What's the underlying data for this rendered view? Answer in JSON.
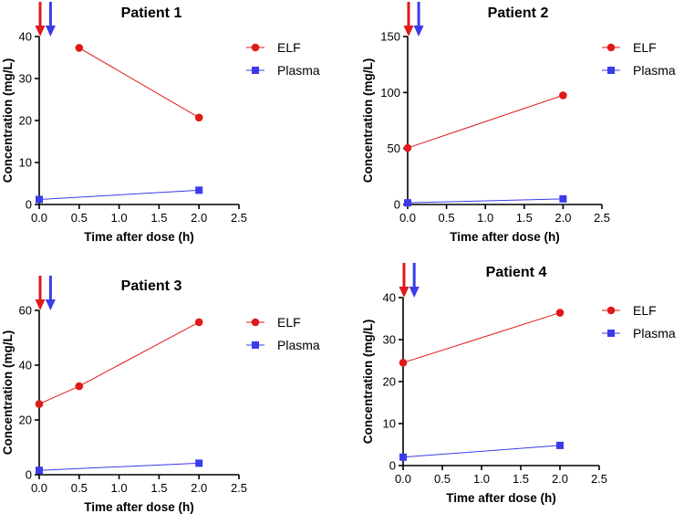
{
  "colors": {
    "elf": "#e01919",
    "plasma": "#3b3bea",
    "dose_arrow_1": "#e01919",
    "dose_arrow_2": "#3b3bea"
  },
  "chart_data": [
    {
      "type": "line",
      "title": "Patient 1",
      "xlabel": "Time after dose (h)",
      "ylabel": "Concentration (mg/L)",
      "xlim": [
        0,
        2.5
      ],
      "ylim": [
        0,
        40
      ],
      "xticks": [
        0,
        0.5,
        1.0,
        1.5,
        2.0,
        2.5
      ],
      "xtick_labels": [
        "0.0",
        "0.5",
        "1.0",
        "1.5",
        "2.0",
        "2.5"
      ],
      "yticks": [
        0,
        10,
        20,
        30,
        40
      ],
      "ytick_labels": [
        "0",
        "10",
        "20",
        "30",
        "40"
      ],
      "dose_arrows_x": [
        0.0,
        0.13
      ],
      "legend_position": "top-right",
      "series": [
        {
          "name": "ELF",
          "marker": "circle",
          "x": [
            0.5,
            2.0
          ],
          "y": [
            37.3,
            20.7
          ]
        },
        {
          "name": "Plasma",
          "marker": "square",
          "x": [
            0.0,
            2.0
          ],
          "y": [
            1.2,
            3.4
          ]
        }
      ]
    },
    {
      "type": "line",
      "title": "Patient 2",
      "xlabel": "Time after dose (h)",
      "ylabel": "Concentration (mg/L)",
      "xlim": [
        0,
        2.5
      ],
      "ylim": [
        0,
        150
      ],
      "xticks": [
        0,
        0.5,
        1.0,
        1.5,
        2.0,
        2.5
      ],
      "xtick_labels": [
        "0.0",
        "0.5",
        "1.0",
        "1.5",
        "2.0",
        "2.5"
      ],
      "yticks": [
        0,
        50,
        100,
        150
      ],
      "ytick_labels": [
        "0",
        "50",
        "100",
        "150"
      ],
      "dose_arrows_x": [
        0.0,
        0.13
      ],
      "legend_position": "top-right",
      "series": [
        {
          "name": "ELF",
          "marker": "circle",
          "x": [
            0.0,
            2.0
          ],
          "y": [
            50.5,
            97.5
          ]
        },
        {
          "name": "Plasma",
          "marker": "square",
          "x": [
            0.0,
            2.0
          ],
          "y": [
            1.5,
            5.0
          ]
        }
      ]
    },
    {
      "type": "line",
      "title": "Patient 3",
      "xlabel": "Time after dose (h)",
      "ylabel": "Concentration (mg/L)",
      "xlim": [
        0,
        2.5
      ],
      "ylim": [
        0,
        60
      ],
      "xticks": [
        0,
        0.5,
        1.0,
        1.5,
        2.0,
        2.5
      ],
      "xtick_labels": [
        "0.0",
        "0.5",
        "1.0",
        "1.5",
        "2.0",
        "2.5"
      ],
      "yticks": [
        0,
        20,
        40,
        60
      ],
      "ytick_labels": [
        "0",
        "20",
        "40",
        "60"
      ],
      "dose_arrows_x": [
        0.0,
        0.13
      ],
      "legend_position": "top-right",
      "series": [
        {
          "name": "ELF",
          "marker": "circle",
          "x": [
            0.0,
            0.5,
            2.0
          ],
          "y": [
            25.8,
            32.3,
            55.7
          ]
        },
        {
          "name": "Plasma",
          "marker": "square",
          "x": [
            0.0,
            2.0
          ],
          "y": [
            1.6,
            4.2
          ]
        }
      ]
    },
    {
      "type": "line",
      "title": "Patient 4",
      "xlabel": "Time after dose (h)",
      "ylabel": "Concentration (mg/L)",
      "xlim": [
        0,
        2.5
      ],
      "ylim": [
        0,
        40
      ],
      "xticks": [
        0,
        0.5,
        1.0,
        1.5,
        2.0,
        2.5
      ],
      "xtick_labels": [
        "0.0",
        "0.5",
        "1.0",
        "1.5",
        "2.0",
        "2.5"
      ],
      "yticks": [
        0,
        10,
        20,
        30,
        40
      ],
      "ytick_labels": [
        "0",
        "10",
        "20",
        "30",
        "40"
      ],
      "dose_arrows_x": [
        0.0,
        0.13
      ],
      "legend_position": "top-right",
      "series": [
        {
          "name": "ELF",
          "marker": "circle",
          "x": [
            0.0,
            2.0
          ],
          "y": [
            24.5,
            36.4
          ]
        },
        {
          "name": "Plasma",
          "marker": "square",
          "x": [
            0.0,
            2.0
          ],
          "y": [
            2.0,
            4.8
          ]
        }
      ]
    }
  ]
}
